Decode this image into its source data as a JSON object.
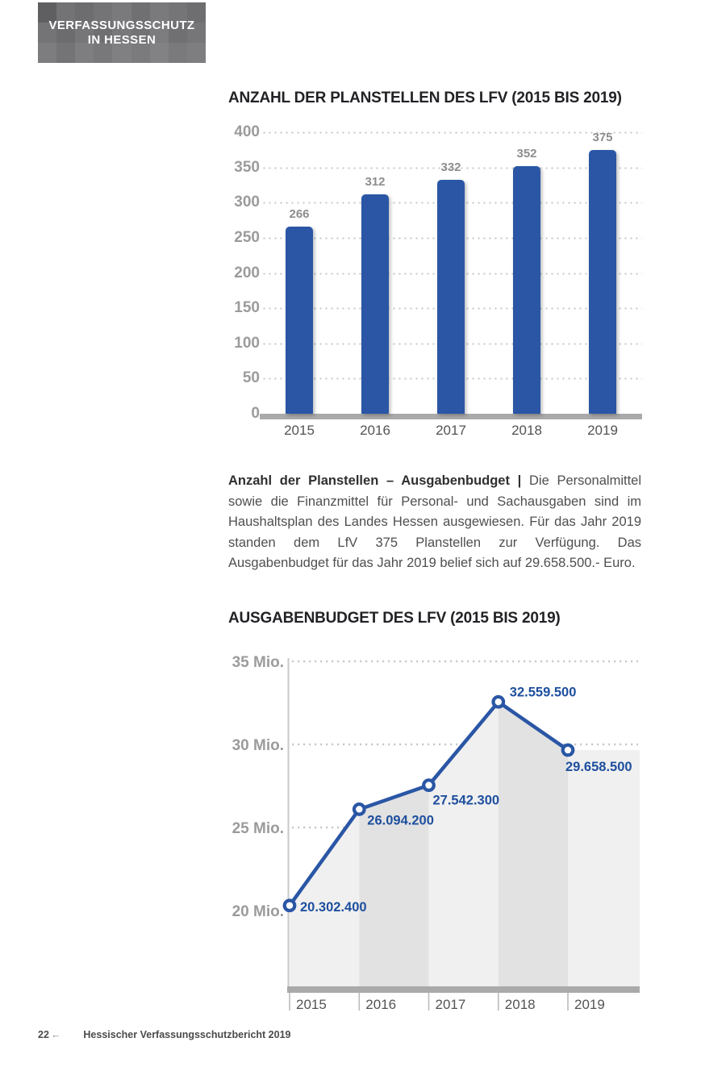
{
  "logo": {
    "line1": "VERFASSUNGSSCHUTZ",
    "line2": "IN HESSEN"
  },
  "paragraph": {
    "bold": "Anzahl der Planstellen – Ausgabenbudget |",
    "rest": "Die Personalmittel sowie die Finanzmittel für Personal- und Sachausgaben sind im Haushalts­plan des Landes Hessen ausgewiesen. Für das Jahr 2019 standen dem LfV 375 Planstellen zur Verfügung. Das Ausgabenbudget für das Jahr 2019 belief sich auf 29.658.500.- Euro."
  },
  "footer": {
    "page_number": "22",
    "arrow": "←",
    "text": "Hessischer Verfassungsschutzbericht 2019"
  },
  "colors": {
    "bar_blue": "#2a56a5",
    "label_blue": "#1e4f9e",
    "axis_gray": "#9b9b9b",
    "grid_dot": "#c9c9c9",
    "baseline": "#aaaaaa",
    "band_light": "#f0f0f0",
    "band_dark": "#e2e2e2",
    "tick_label": "#535356"
  },
  "chart_data": [
    {
      "type": "bar",
      "title": "ANZAHL DER PLANSTELLEN DES LFV (2015 BIS 2019)",
      "categories": [
        "2015",
        "2016",
        "2017",
        "2018",
        "2019"
      ],
      "values": [
        266,
        312,
        332,
        352,
        375
      ],
      "value_labels": [
        "266",
        "312",
        "332",
        "352",
        "375"
      ],
      "ylabel": "",
      "xlabel": "",
      "ylim": [
        0,
        400
      ],
      "ytick_step": 50,
      "yticks": [
        "400",
        "350",
        "300",
        "250",
        "200",
        "150",
        "100",
        "50",
        "0"
      ],
      "grid": "horizontal-dotted",
      "legend": "none"
    },
    {
      "type": "line",
      "title": "AUSGABENBUDGET DES LFV (2015 BIS 2019)",
      "categories": [
        "2015",
        "2016",
        "2017",
        "2018",
        "2019"
      ],
      "values": [
        20302400,
        26094200,
        27542300,
        32559500,
        29658500
      ],
      "value_labels": [
        "20.302.400",
        "26.094.200",
        "27.542.300",
        "32.559.500",
        "29.658.500"
      ],
      "ylabel": "",
      "xlabel": "",
      "ylim_mio": [
        20,
        35
      ],
      "yticks": [
        "35 Mio.",
        "30 Mio.",
        "25 Mio.",
        "20 Mio."
      ],
      "ytick_values_mio": [
        35,
        30,
        25,
        20
      ],
      "grid": "horizontal-dotted",
      "area_fill": "alternating-gray-bands",
      "marker": "open-circle",
      "legend": "none"
    }
  ]
}
